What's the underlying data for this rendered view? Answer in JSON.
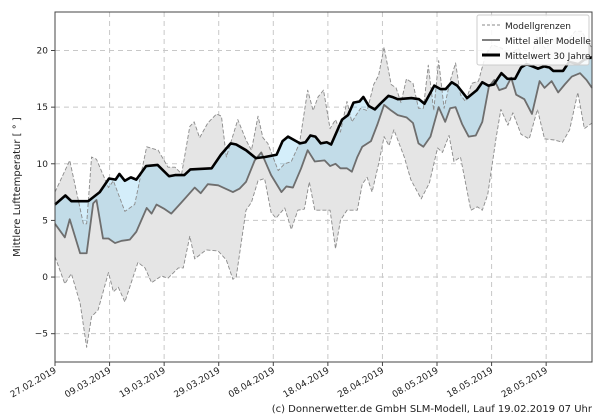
{
  "chart_data": {
    "type": "line",
    "title": "",
    "xlabel": "",
    "ylabel": "Mittlere Lufttemperatur [ ° ]",
    "x_unit": "days since 27.02.2019",
    "xlim": [
      0,
      98.4
    ],
    "ylim": [
      -7.5,
      23.4
    ],
    "grid": true,
    "legend_position": "top-right",
    "x_ticks": [
      {
        "day": 0,
        "label": "27.02.2019"
      },
      {
        "day": 10,
        "label": "09.03.2019"
      },
      {
        "day": 20,
        "label": "19.03.2019"
      },
      {
        "day": 30,
        "label": "29.03.2019"
      },
      {
        "day": 40,
        "label": "08.04.2019"
      },
      {
        "day": 50,
        "label": "18.04.2019"
      },
      {
        "day": 60,
        "label": "28.04.2019"
      },
      {
        "day": 70,
        "label": "08.05.2019"
      },
      {
        "day": 80,
        "label": "18.05.2019"
      },
      {
        "day": 90,
        "label": "28.05.2019"
      }
    ],
    "y_ticks": [
      {
        "value": -5,
        "label": "−5"
      },
      {
        "value": 0,
        "label": "0"
      },
      {
        "value": 5,
        "label": "5"
      },
      {
        "value": 10,
        "label": "10"
      },
      {
        "value": 15,
        "label": "15"
      },
      {
        "value": 20,
        "label": "20"
      }
    ],
    "legend": [
      {
        "key": "bounds",
        "label": "Modellgrenzen"
      },
      {
        "key": "mean",
        "label": "Mittel aller Modelle"
      },
      {
        "key": "climate",
        "label": "Mittelwert 30 Jahre"
      }
    ],
    "series": {
      "upper": [
        [
          0,
          7.5
        ],
        [
          2.7,
          10.3
        ],
        [
          4,
          7.4
        ],
        [
          5.2,
          4.7
        ],
        [
          5.8,
          4.7
        ],
        [
          6.7,
          10.6
        ],
        [
          7.6,
          10.4
        ],
        [
          9.8,
          7.9
        ],
        [
          10.7,
          8.5
        ],
        [
          12.8,
          5.8
        ],
        [
          14.6,
          6.4
        ],
        [
          16.8,
          11.5
        ],
        [
          18.9,
          11.2
        ],
        [
          20.7,
          9.7
        ],
        [
          22,
          9.7
        ],
        [
          23.2,
          9.1
        ],
        [
          24.7,
          13.3
        ],
        [
          25.5,
          13.7
        ],
        [
          26.5,
          12.3
        ],
        [
          28,
          13.6
        ],
        [
          29.6,
          14.4
        ],
        [
          30.5,
          14.2
        ],
        [
          31.4,
          10.6
        ],
        [
          33.5,
          13.9
        ],
        [
          35,
          12.1
        ],
        [
          36,
          11.2
        ],
        [
          37.2,
          14.2
        ],
        [
          38.1,
          12.3
        ],
        [
          39,
          11.8
        ],
        [
          40.9,
          9.4
        ],
        [
          42.1,
          10
        ],
        [
          43.3,
          10.2
        ],
        [
          44.8,
          11.8
        ],
        [
          46.3,
          16.5
        ],
        [
          47.3,
          14.7
        ],
        [
          48.2,
          15.9
        ],
        [
          49.2,
          16.5
        ],
        [
          50.4,
          13.1
        ],
        [
          51.4,
          13.9
        ],
        [
          52.3,
          12.8
        ],
        [
          53.5,
          15.5
        ],
        [
          54.4,
          13.7
        ],
        [
          56,
          14.9
        ],
        [
          57.2,
          14.7
        ],
        [
          58.4,
          17
        ],
        [
          59.3,
          17.8
        ],
        [
          60.3,
          20.3
        ],
        [
          61.6,
          17
        ],
        [
          62.5,
          16.7
        ],
        [
          63.4,
          15.4
        ],
        [
          64.4,
          17.5
        ],
        [
          65.6,
          17.1
        ],
        [
          66.6,
          14.9
        ],
        [
          67.5,
          14.9
        ],
        [
          68.4,
          18.7
        ],
        [
          69.4,
          14.7
        ],
        [
          70.3,
          19.1
        ],
        [
          71.3,
          14.9
        ],
        [
          72.4,
          17.3
        ],
        [
          73.4,
          18.9
        ],
        [
          74.3,
          16.1
        ],
        [
          75.2,
          15.5
        ],
        [
          76.4,
          17.1
        ],
        [
          77.6,
          17.3
        ],
        [
          78.9,
          19.6
        ],
        [
          80.1,
          20.5
        ],
        [
          81.9,
          20.2
        ],
        [
          83.1,
          19.6
        ],
        [
          84.9,
          20.2
        ],
        [
          86.8,
          18.7
        ],
        [
          88.3,
          21.2
        ],
        [
          89.8,
          20.2
        ],
        [
          91.7,
          21.1
        ],
        [
          93.5,
          20.6
        ],
        [
          95.3,
          21.7
        ],
        [
          96.5,
          21.7
        ],
        [
          98.4,
          20.2
        ]
      ],
      "lower": [
        [
          0,
          1.8
        ],
        [
          1.8,
          -0.6
        ],
        [
          3,
          0.3
        ],
        [
          4.6,
          -2.3
        ],
        [
          5.8,
          -6.2
        ],
        [
          6.7,
          -3.5
        ],
        [
          7.9,
          -2.9
        ],
        [
          9.8,
          0.4
        ],
        [
          10.7,
          -1.3
        ],
        [
          11.6,
          -0.9
        ],
        [
          12.8,
          -2.2
        ],
        [
          15.2,
          1.3
        ],
        [
          16.5,
          0.8
        ],
        [
          17.7,
          -0.5
        ],
        [
          19.5,
          0.1
        ],
        [
          20.7,
          -0.1
        ],
        [
          22.6,
          0.8
        ],
        [
          23.5,
          0.8
        ],
        [
          24.7,
          3.6
        ],
        [
          25.6,
          1.6
        ],
        [
          27.7,
          2.4
        ],
        [
          29.9,
          2.3
        ],
        [
          31.4,
          1.5
        ],
        [
          32.6,
          -0.2
        ],
        [
          33.2,
          0
        ],
        [
          35,
          5.9
        ],
        [
          36,
          6.6
        ],
        [
          37.2,
          8.5
        ],
        [
          38.4,
          8.7
        ],
        [
          39.6,
          5.7
        ],
        [
          40.5,
          5.2
        ],
        [
          42.1,
          6.1
        ],
        [
          43.3,
          4.2
        ],
        [
          44.5,
          5.9
        ],
        [
          45.7,
          6
        ],
        [
          46.6,
          8.4
        ],
        [
          47.6,
          5.9
        ],
        [
          49.4,
          5.9
        ],
        [
          50.4,
          5.9
        ],
        [
          51.4,
          2.5
        ],
        [
          52.3,
          5
        ],
        [
          53.5,
          5.9
        ],
        [
          55.4,
          5.9
        ],
        [
          56.3,
          8.2
        ],
        [
          57.2,
          8.8
        ],
        [
          58.1,
          7.5
        ],
        [
          59.4,
          10.2
        ],
        [
          60.3,
          12.4
        ],
        [
          61.2,
          11.6
        ],
        [
          62.1,
          13
        ],
        [
          64,
          10.6
        ],
        [
          65.2,
          8.6
        ],
        [
          67.1,
          6.9
        ],
        [
          68.6,
          8.3
        ],
        [
          70.1,
          11.4
        ],
        [
          71,
          11
        ],
        [
          72.2,
          12.5
        ],
        [
          73.1,
          10.2
        ],
        [
          74.3,
          10.6
        ],
        [
          76.2,
          5.9
        ],
        [
          77.4,
          6.2
        ],
        [
          78.3,
          5.9
        ],
        [
          79.3,
          7.3
        ],
        [
          80.8,
          12.2
        ],
        [
          81.7,
          14.8
        ],
        [
          83,
          13.4
        ],
        [
          83.9,
          14.5
        ],
        [
          85.4,
          12.6
        ],
        [
          86.9,
          12.2
        ],
        [
          88.4,
          14.8
        ],
        [
          89.7,
          12.2
        ],
        [
          91.5,
          12.1
        ],
        [
          93,
          11.9
        ],
        [
          94.3,
          13
        ],
        [
          95.8,
          16.3
        ],
        [
          97,
          13.1
        ],
        [
          98.4,
          13.6
        ]
      ],
      "mean": [
        [
          0,
          4.7
        ],
        [
          1.8,
          3.5
        ],
        [
          2.7,
          5.1
        ],
        [
          4.6,
          2.1
        ],
        [
          5.8,
          2.1
        ],
        [
          7,
          6.5
        ],
        [
          7.6,
          6.8
        ],
        [
          8.8,
          3.4
        ],
        [
          9.8,
          3.4
        ],
        [
          11,
          3
        ],
        [
          12.2,
          3.2
        ],
        [
          13.7,
          3.3
        ],
        [
          14.9,
          4
        ],
        [
          16.8,
          6.1
        ],
        [
          17.7,
          5.6
        ],
        [
          18.6,
          6.4
        ],
        [
          20.1,
          6
        ],
        [
          21.3,
          5.6
        ],
        [
          23.2,
          6.6
        ],
        [
          25.6,
          7.9
        ],
        [
          26.7,
          7.4
        ],
        [
          28,
          8.2
        ],
        [
          29.9,
          8.1
        ],
        [
          32.6,
          7.5
        ],
        [
          33.8,
          7.8
        ],
        [
          35,
          8.4
        ],
        [
          36.6,
          10.3
        ],
        [
          37.8,
          11
        ],
        [
          39.6,
          9
        ],
        [
          41.5,
          7.5
        ],
        [
          42.4,
          8
        ],
        [
          43.6,
          7.9
        ],
        [
          45.1,
          9.6
        ],
        [
          46.3,
          11.2
        ],
        [
          47.6,
          10.2
        ],
        [
          49.4,
          10.3
        ],
        [
          50.4,
          9.8
        ],
        [
          51.4,
          10
        ],
        [
          52.3,
          9.6
        ],
        [
          53.5,
          9.6
        ],
        [
          54.4,
          9.3
        ],
        [
          55.4,
          10.6
        ],
        [
          56.3,
          11.5
        ],
        [
          57.9,
          12
        ],
        [
          59.1,
          13.5
        ],
        [
          60.3,
          15.2
        ],
        [
          61.6,
          14.7
        ],
        [
          62.8,
          14.3
        ],
        [
          64.4,
          14.1
        ],
        [
          65.6,
          13.6
        ],
        [
          66.6,
          11.8
        ],
        [
          67.5,
          11.5
        ],
        [
          68.8,
          12.4
        ],
        [
          70.3,
          15
        ],
        [
          71.5,
          13.7
        ],
        [
          72.4,
          14.9
        ],
        [
          73.4,
          15
        ],
        [
          74.6,
          13.5
        ],
        [
          75.8,
          12.4
        ],
        [
          77.1,
          12.5
        ],
        [
          78.3,
          13.7
        ],
        [
          79.5,
          16.8
        ],
        [
          80.5,
          17.4
        ],
        [
          81.4,
          16.5
        ],
        [
          82.6,
          16.7
        ],
        [
          83.6,
          17.6
        ],
        [
          84.5,
          16.1
        ],
        [
          86,
          15.7
        ],
        [
          87.4,
          14.4
        ],
        [
          88.8,
          17.3
        ],
        [
          89.7,
          16.7
        ],
        [
          91,
          17.3
        ],
        [
          92.2,
          16.3
        ],
        [
          93.4,
          17
        ],
        [
          94.7,
          17.7
        ],
        [
          96.2,
          18
        ],
        [
          97.4,
          17.4
        ],
        [
          98.4,
          16.7
        ]
      ],
      "climate": [
        [
          0,
          6.4
        ],
        [
          1.9,
          7.2
        ],
        [
          3,
          6.7
        ],
        [
          6.1,
          6.7
        ],
        [
          8.2,
          7.5
        ],
        [
          9.9,
          8.7
        ],
        [
          11.1,
          8.6
        ],
        [
          11.8,
          9.1
        ],
        [
          12.8,
          8.5
        ],
        [
          13.9,
          8.8
        ],
        [
          14.9,
          8.6
        ],
        [
          16.7,
          9.8
        ],
        [
          18.8,
          9.9
        ],
        [
          20.9,
          8.9
        ],
        [
          22,
          9
        ],
        [
          23.7,
          9
        ],
        [
          24.8,
          9.5
        ],
        [
          28.7,
          9.6
        ],
        [
          30.4,
          10.8
        ],
        [
          32.2,
          11.8
        ],
        [
          33.2,
          11.7
        ],
        [
          35,
          11.2
        ],
        [
          36.8,
          10.5
        ],
        [
          38.5,
          10.6
        ],
        [
          40.6,
          10.8
        ],
        [
          41.7,
          12
        ],
        [
          42.7,
          12.4
        ],
        [
          44.9,
          11.8
        ],
        [
          45.9,
          11.9
        ],
        [
          46.8,
          12.5
        ],
        [
          47.7,
          12.4
        ],
        [
          48.7,
          11.8
        ],
        [
          49.8,
          11.9
        ],
        [
          50.6,
          11.7
        ],
        [
          52.6,
          13.9
        ],
        [
          53.7,
          14.3
        ],
        [
          54.7,
          15.4
        ],
        [
          55.8,
          15.5
        ],
        [
          56.5,
          15.9
        ],
        [
          57.5,
          15.1
        ],
        [
          58.6,
          14.8
        ],
        [
          59.6,
          15.3
        ],
        [
          61.1,
          16
        ],
        [
          61.8,
          15.9
        ],
        [
          62.8,
          15.7
        ],
        [
          65.3,
          15.8
        ],
        [
          66.7,
          15.7
        ],
        [
          67.7,
          15.3
        ],
        [
          69.5,
          16.9
        ],
        [
          70.6,
          16.6
        ],
        [
          71.6,
          16.6
        ],
        [
          72.7,
          17.2
        ],
        [
          73.7,
          16.9
        ],
        [
          75.5,
          15.8
        ],
        [
          77.3,
          16.5
        ],
        [
          78.3,
          17.2
        ],
        [
          79.4,
          16.9
        ],
        [
          80.4,
          17
        ],
        [
          81.8,
          18
        ],
        [
          82.9,
          17.5
        ],
        [
          84.3,
          17.5
        ],
        [
          85.4,
          18.5
        ],
        [
          86.4,
          18.8
        ],
        [
          87.5,
          18.6
        ],
        [
          88.5,
          18.4
        ],
        [
          89.6,
          18.6
        ],
        [
          90.6,
          18.5
        ],
        [
          91.3,
          18.2
        ],
        [
          93.1,
          18.2
        ],
        [
          94.2,
          19
        ],
        [
          95.9,
          18.8
        ],
        [
          97,
          19.2
        ],
        [
          98.4,
          19.4
        ]
      ]
    },
    "colors": {
      "band": "#e5e5e5",
      "diff_fill": "rgba(112,198,238,0.30)",
      "bounds_line": "#8a8a8a",
      "mean_line": "#6e6e6e",
      "climate_line": "#000000"
    }
  },
  "footer": "(c) Donnerwetter.de GmbH SLM-Modell, Lauf 19.02.2019 07 Uhr"
}
